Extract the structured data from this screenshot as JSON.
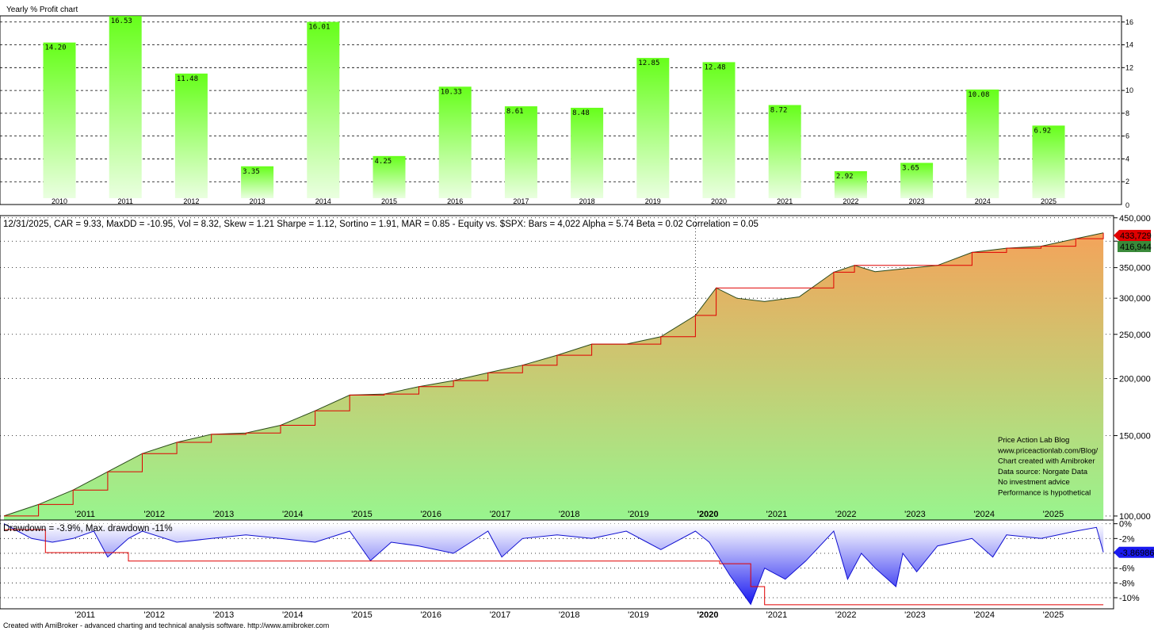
{
  "chart_data": [
    {
      "type": "bar",
      "title": "Yearly % Profit chart",
      "categories": [
        "2010",
        "2011",
        "2012",
        "2013",
        "2014",
        "2015",
        "2016",
        "2017",
        "2018",
        "2019",
        "2020",
        "2021",
        "2022",
        "2023",
        "2024",
        "2025"
      ],
      "values": [
        14.2,
        16.53,
        11.48,
        3.35,
        16.01,
        4.25,
        10.33,
        8.61,
        8.48,
        12.85,
        12.48,
        8.72,
        2.92,
        3.65,
        10.08,
        6.92
      ],
      "value_labels": [
        "14.20",
        "16.53",
        "11.48",
        "3.35",
        "16.01",
        "4.25",
        "10.33",
        "8.61",
        "8.48",
        "12.85",
        "12.48",
        "8.72",
        "2.92",
        "3.65",
        "10.08",
        "6.92"
      ],
      "y_ticks": [
        2,
        4,
        6,
        8,
        10,
        12,
        14,
        16
      ],
      "y_tick_labels": [
        "2",
        "4",
        "6",
        "8",
        "10",
        "12",
        "14",
        "16"
      ],
      "ylim": [
        0,
        16.4
      ],
      "zero_label": "0",
      "colors": {
        "high": "#66ff1a",
        "low": "#eaffe0"
      }
    },
    {
      "type": "area",
      "title": "12/31/2025, CAR = 9.33, MaxDD = -10.95, Vol = 8.32, Skew = 1.21 Sharpe = 1.12, Sortino = 1.91, MAR = 0.85 - Equity vs. $SPX:  Bars = 4,022 Alpha = 5.74 Beta = 0.02 Correlation = 0.05",
      "scale": "log",
      "ylim": [
        98000,
        455000
      ],
      "x": [
        2010.0,
        2010.5,
        2011.0,
        2011.5,
        2012.0,
        2012.5,
        2013.0,
        2013.5,
        2014.0,
        2014.5,
        2015.0,
        2015.5,
        2016.0,
        2016.5,
        2017.0,
        2017.5,
        2018.0,
        2018.5,
        2019.0,
        2019.5,
        2020.0,
        2020.3,
        2020.6,
        2021.0,
        2021.5,
        2022.0,
        2022.3,
        2022.6,
        2023.0,
        2023.5,
        2024.0,
        2024.5,
        2025.0,
        2025.5,
        2025.9
      ],
      "y": [
        100000,
        106000,
        114000,
        125000,
        137000,
        145000,
        151000,
        152000,
        158000,
        170000,
        184000,
        185000,
        192000,
        198000,
        206000,
        214000,
        225000,
        238000,
        238000,
        247000,
        275000,
        316000,
        300000,
        295000,
        302000,
        342000,
        354000,
        343000,
        348000,
        354000,
        378000,
        386000,
        390000,
        405000,
        416944
      ],
      "y_ticks": [
        100000,
        150000,
        200000,
        250000,
        300000,
        350000,
        400000,
        450000
      ],
      "y_tick_labels": [
        "100,000",
        "150,000",
        "200,000",
        "250,000",
        "300,000",
        "350,000",
        "400,000",
        "450,000"
      ],
      "peak_label": "433,729",
      "last_label": "416,944",
      "x_tick_labels": [
        "2011",
        "2012",
        "2013",
        "2014",
        "2015",
        "2016",
        "2017",
        "2018",
        "2019",
        "2020",
        "2021",
        "2022",
        "2023",
        "2024",
        "2025"
      ],
      "annotation_lines": [
        "Price Action Lab Blog",
        "www.priceactionlab.com/Blog/",
        "Chart created with Amibroker",
        "Data source: Norgate Data",
        "No investment advice",
        "Performance is hypothetical"
      ],
      "colors": {
        "top": "#f4a35a",
        "bottom": "#98f58e",
        "line": "#e00000",
        "peak_badge": "#e00000",
        "last_badge": "#3a8a3a"
      }
    },
    {
      "type": "area",
      "title": "Drawdown = -3.9%, Max. drawdown -11%",
      "ylim": [
        -11.5,
        0.5
      ],
      "x": [
        2010.0,
        2010.2,
        2010.4,
        2010.7,
        2011.0,
        2011.3,
        2011.5,
        2011.8,
        2012.0,
        2012.5,
        2013.0,
        2013.5,
        2014.0,
        2014.5,
        2015.0,
        2015.3,
        2015.6,
        2016.0,
        2016.5,
        2017.0,
        2017.2,
        2017.5,
        2018.0,
        2018.5,
        2019.0,
        2019.3,
        2019.5,
        2020.0,
        2020.2,
        2020.5,
        2020.8,
        2021.0,
        2021.3,
        2021.6,
        2022.0,
        2022.2,
        2022.4,
        2022.6,
        2022.9,
        2023.0,
        2023.2,
        2023.5,
        2024.0,
        2024.3,
        2024.5,
        2025.0,
        2025.5,
        2025.8,
        2025.9
      ],
      "y": [
        0,
        -1.0,
        -2.0,
        -2.5,
        -2.0,
        -1.0,
        -4.5,
        -2.0,
        -1.0,
        -2.5,
        -2.0,
        -1.5,
        -2.0,
        -2.5,
        -1.0,
        -5.0,
        -2.5,
        -3.0,
        -4.0,
        -1.0,
        -4.5,
        -2.0,
        -1.5,
        -2.0,
        -1.0,
        -2.5,
        -3.5,
        -1.0,
        -2.5,
        -7.0,
        -10.9,
        -6.0,
        -7.5,
        -5.0,
        -1.0,
        -7.5,
        -4.0,
        -6.0,
        -8.5,
        -4.0,
        -6.5,
        -3.0,
        -2.0,
        -4.5,
        -1.5,
        -2.0,
        -1.0,
        -0.5,
        -3.87
      ],
      "max_dd_x": [
        2010.0,
        2010.6,
        2010.6,
        2011.8,
        2011.8,
        2015.4,
        2015.4,
        2020.35,
        2020.35,
        2020.8,
        2020.8,
        2021.0,
        2021.0,
        2025.9
      ],
      "max_dd_y": [
        -0.8,
        -0.8,
        -3.9,
        -3.9,
        -5.05,
        -5.05,
        -5.05,
        -5.05,
        -5.4,
        -5.4,
        -8.5,
        -8.5,
        -10.95,
        -10.95
      ],
      "y_ticks": [
        0,
        -2,
        -4,
        -6,
        -8,
        -10
      ],
      "y_tick_labels": [
        "0%",
        "-2%",
        "-4%",
        "-6%",
        "-8%",
        "-10%"
      ],
      "last_label": "-3.86986",
      "x_tick_labels": [
        "2011",
        "2012",
        "2013",
        "2014",
        "2015",
        "2016",
        "2017",
        "2018",
        "2019",
        "2020",
        "2021",
        "2022",
        "2023",
        "2024",
        "2025"
      ],
      "colors": {
        "line": "#1010d0",
        "fill_top": "#ffffff",
        "fill_bottom": "#1a1af0",
        "maxdd": "#e00000",
        "badge": "#1a1af0"
      }
    }
  ],
  "footer": "Created with AmiBroker - advanced charting and technical analysis software. http://www.amibroker.com"
}
